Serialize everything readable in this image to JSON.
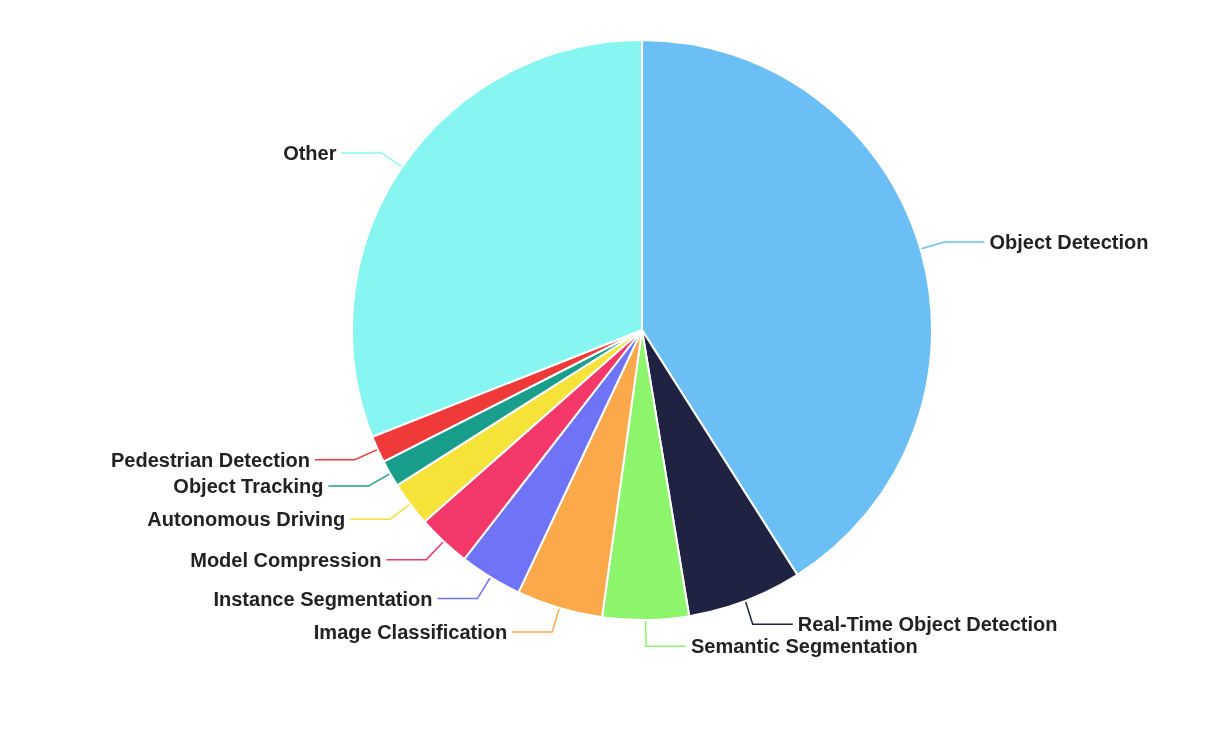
{
  "chart_data": {
    "type": "pie",
    "categories": [
      "Object Detection",
      "Real-Time Object Detection",
      "Semantic Segmentation",
      "Image Classification",
      "Instance Segmentation",
      "Model Compression",
      "Autonomous Driving",
      "Object Tracking",
      "Pedestrian Detection",
      "Other"
    ],
    "values": [
      41,
      6.4,
      4.8,
      4.8,
      3.5,
      3,
      2.5,
      1.5,
      1.5,
      31
    ],
    "colors": [
      "#6bbff5",
      "#1f2341",
      "#8df56b",
      "#fba94b",
      "#6f73f5",
      "#f5386a",
      "#f5e33a",
      "#1a9e8c",
      "#f03a3a",
      "#87f5f0"
    ],
    "legend": false
  }
}
